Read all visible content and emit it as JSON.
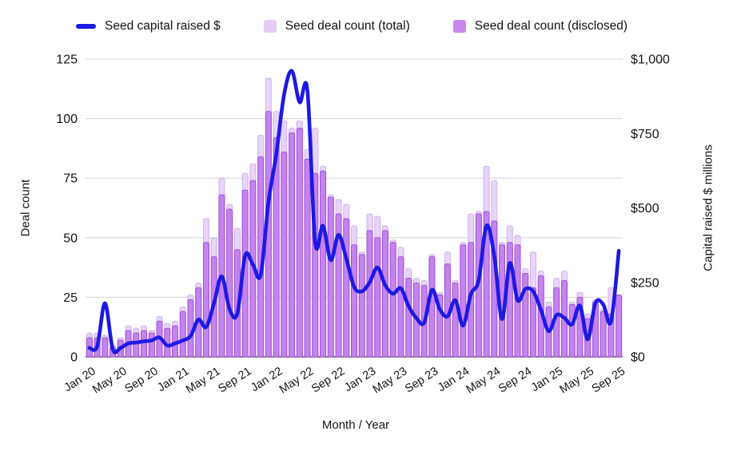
{
  "chart_data": {
    "type": "combo (bar + line)",
    "x_label": "Month / Year",
    "x": [
      "Jan 20",
      "Feb 20",
      "Mar 20",
      "Apr 20",
      "May 20",
      "Jun 20",
      "Jul 20",
      "Aug 20",
      "Sep 20",
      "Oct 20",
      "Nov 20",
      "Dec 20",
      "Jan 21",
      "Feb 21",
      "Mar 21",
      "Apr 21",
      "May 21",
      "Jun 21",
      "Jul 21",
      "Aug 21",
      "Sep 21",
      "Oct 21",
      "Nov 21",
      "Dec 21",
      "Jan 22",
      "Feb 22",
      "Mar 22",
      "Apr 22",
      "May 22",
      "Jun 22",
      "Jul 22",
      "Aug 22",
      "Sep 22",
      "Oct 22",
      "Nov 22",
      "Dec 22",
      "Jan 23",
      "Feb 23",
      "Mar 23",
      "Apr 23",
      "May 23",
      "Jun 23",
      "Jul 23",
      "Aug 23",
      "Sep 23",
      "Oct 23",
      "Nov 23",
      "Dec 23",
      "Jan 24",
      "Feb 24",
      "Mar 24",
      "Apr 24",
      "May 24",
      "Jun 24",
      "Jul 24",
      "Aug 24",
      "Sep 24",
      "Oct 24",
      "Nov 24",
      "Dec 24",
      "Jan 25",
      "Feb 25",
      "Mar 25",
      "Apr 25",
      "May 25",
      "Jun 25",
      "Jul 25",
      "Aug 25",
      "Sep 25"
    ],
    "x_tick_every": 4,
    "y_left": {
      "label": "Deal count",
      "min": 0,
      "max": 125,
      "ticks": [
        0,
        25,
        50,
        75,
        100,
        125
      ]
    },
    "y_right": {
      "label": "Capital raised $ millions",
      "min": 0,
      "max": 1000,
      "tick_labels": [
        "$0",
        "$250",
        "$500",
        "$750",
        "$1,000"
      ],
      "tick_values": [
        0,
        250,
        500,
        750,
        1000
      ]
    },
    "grid": true,
    "legend_position": "top",
    "legend": [
      {
        "label": "Seed capital raised $",
        "shape": "line",
        "color": "#1d19e2"
      },
      {
        "label": "Seed deal count (total)",
        "shape": "square",
        "color": "#e4ccf5"
      },
      {
        "label": "Seed deal count (disclosed)",
        "shape": "square",
        "color": "#c787ef"
      }
    ],
    "series": [
      {
        "name": "Seed deal count (total)",
        "type": "bar",
        "axis": "left",
        "fill": "#e8d4f8",
        "stroke": "#d2b1f0",
        "values": [
          10,
          10,
          9,
          5,
          8,
          13,
          12,
          13,
          11,
          17,
          14,
          15,
          21,
          26,
          31,
          58,
          50,
          75,
          64,
          54,
          77,
          81,
          93,
          117,
          103,
          99,
          96,
          99,
          87,
          96,
          80,
          68,
          66,
          64,
          55,
          44,
          60,
          59,
          55,
          49,
          46,
          37,
          33,
          32,
          43,
          27,
          44,
          32,
          48,
          60,
          61,
          80,
          74,
          48,
          55,
          51,
          37,
          44,
          36,
          23,
          33,
          36,
          23,
          27,
          18,
          24,
          20,
          29,
          26
        ]
      },
      {
        "name": "Seed deal count (disclosed)",
        "type": "bar",
        "axis": "left",
        "fill": "#c583ee",
        "stroke": "#9d4fdb",
        "values": [
          8,
          8,
          8,
          4,
          7,
          11,
          10,
          11,
          10,
          15,
          12,
          13,
          19,
          24,
          29,
          48,
          42,
          68,
          62,
          45,
          70,
          74,
          84,
          103,
          92,
          86,
          94,
          96,
          83,
          77,
          78,
          67,
          60,
          58,
          47,
          43,
          53,
          50,
          53,
          48,
          42,
          33,
          31,
          30,
          42,
          26,
          39,
          31,
          47,
          48,
          60,
          61,
          57,
          47,
          48,
          47,
          35,
          29,
          34,
          21,
          29,
          32,
          22,
          25,
          16,
          23,
          19,
          18,
          26
        ]
      },
      {
        "name": "Seed capital raised $",
        "type": "line",
        "axis": "right",
        "color": "#1d19e2",
        "values": [
          30,
          35,
          180,
          25,
          30,
          45,
          48,
          52,
          55,
          65,
          38,
          45,
          55,
          70,
          125,
          100,
          180,
          270,
          160,
          145,
          340,
          310,
          275,
          520,
          680,
          880,
          960,
          855,
          895,
          385,
          440,
          325,
          410,
          330,
          235,
          220,
          250,
          300,
          240,
          212,
          230,
          170,
          130,
          115,
          225,
          160,
          136,
          190,
          105,
          210,
          257,
          440,
          340,
          127,
          315,
          190,
          228,
          220,
          158,
          86,
          140,
          131,
          109,
          172,
          59,
          181,
          176,
          118,
          356
        ]
      }
    ],
    "colors": {
      "gridline": "#d9d9d9",
      "axis_line": "#4a4a4a",
      "text": "#131313",
      "background": "#ffffff"
    }
  }
}
